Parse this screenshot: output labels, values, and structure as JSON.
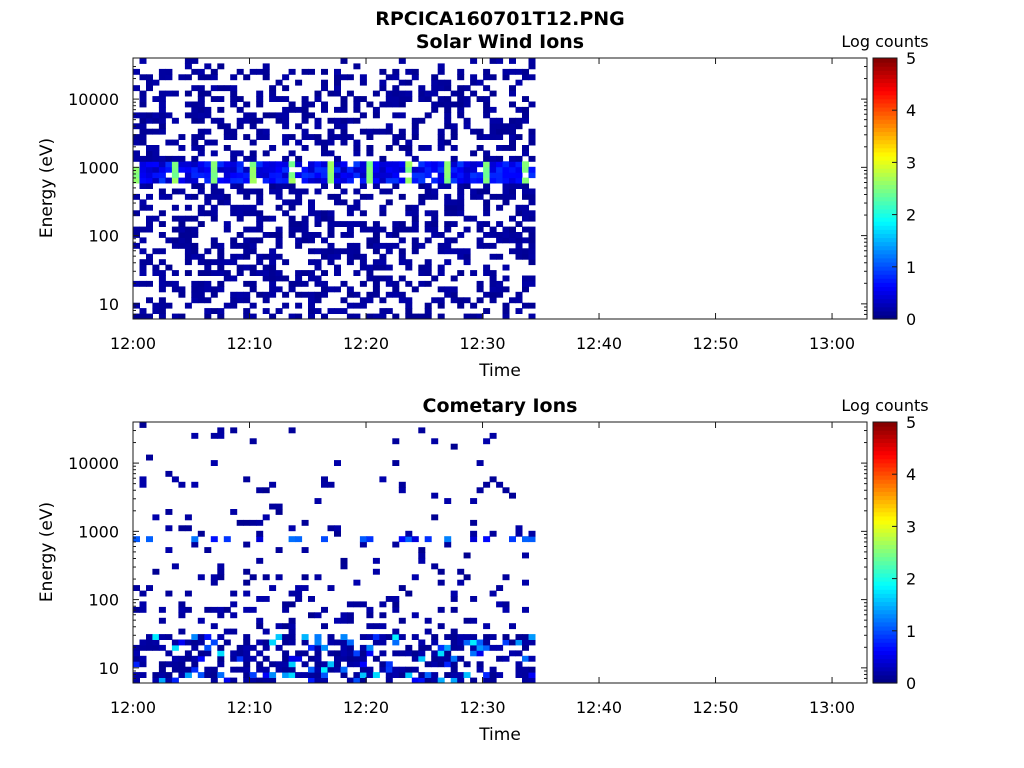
{
  "figure": {
    "title": "RPCICA160701T12.PNG"
  },
  "colorbar": {
    "label": "Log counts",
    "range": [
      0,
      5
    ],
    "ticks": [
      "0",
      "1",
      "2",
      "3",
      "4",
      "5"
    ],
    "colormap": "jet"
  },
  "chart_data": [
    {
      "type": "heatmap",
      "title": "Solar Wind Ions",
      "xlabel": "Time",
      "ylabel": "Energy (eV)",
      "x_range": [
        "12:00",
        "13:03"
      ],
      "y_range": [
        6,
        40000
      ],
      "yscale": "log",
      "data_extent_end": "12:34:30",
      "xticks": [
        "12:00",
        "12:10",
        "12:20",
        "12:30",
        "12:40",
        "12:50",
        "13:00"
      ],
      "yticks": [
        "10",
        "100",
        "1000",
        "10000"
      ],
      "grid": false,
      "colorbar_label": "Log counts",
      "sweep_peaks_eV": [
        700,
        1000
      ],
      "peak_log_counts": 2.8
    },
    {
      "type": "heatmap",
      "title": "Cometary Ions",
      "xlabel": "Time",
      "ylabel": "Energy (eV)",
      "x_range": [
        "12:00",
        "13:03"
      ],
      "y_range": [
        6,
        40000
      ],
      "yscale": "log",
      "data_extent_end": "12:34:30",
      "xticks": [
        "12:00",
        "12:10",
        "12:20",
        "12:30",
        "12:40",
        "12:50",
        "13:00"
      ],
      "yticks": [
        "10",
        "100",
        "1000",
        "10000"
      ],
      "grid": false,
      "colorbar_label": "Log counts",
      "sweep_peaks_eV": [
        15,
        20,
        700
      ],
      "peak_log_counts": 1.9
    }
  ]
}
